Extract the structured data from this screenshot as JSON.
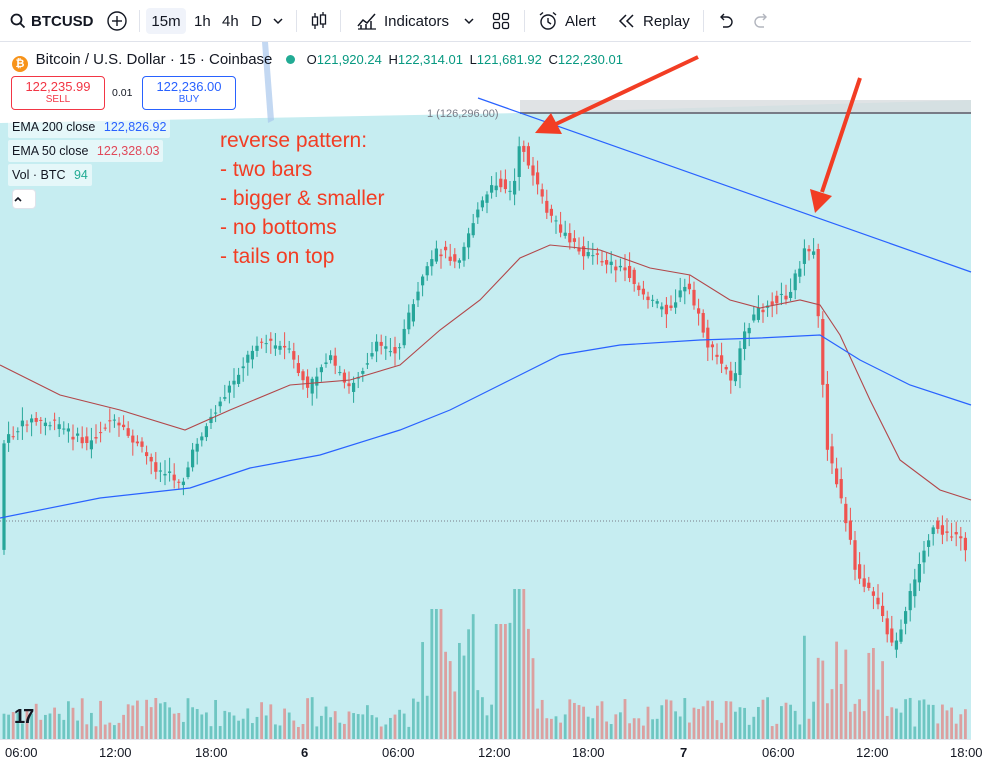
{
  "toolbar": {
    "symbol": "BTCUSD",
    "intervals": [
      "15m",
      "1h",
      "4h",
      "D"
    ],
    "selected_interval": "15m",
    "indicators_label": "Indicators",
    "alert_label": "Alert",
    "replay_label": "Replay"
  },
  "legend": {
    "title": "Bitcoin / U.S. Dollar · 15 · Coinbase",
    "open_label": "O",
    "open": "121,920.24",
    "high_label": "H",
    "high": "122,314.01",
    "low_label": "L",
    "low": "121,681.92",
    "close_label": "C",
    "close": "122,230.01"
  },
  "trade": {
    "sell_price": "122,235.99",
    "sell_label": "SELL",
    "spread": "0.01",
    "buy_price": "122,236.00",
    "buy_label": "BUY"
  },
  "indicators": [
    {
      "name": "EMA 200 close",
      "value": "122,826.92"
    },
    {
      "name": "EMA 50 close",
      "value": "122,328.03"
    },
    {
      "name": "Vol · BTC",
      "value": "94"
    }
  ],
  "annotation": {
    "lines": [
      "reverse pattern:",
      "- two bars",
      "- bigger & smaller",
      "- no bottoms",
      "- tails on top"
    ]
  },
  "high_marker": "1 (126,296.00)",
  "x_ticks": [
    "06:00",
    "12:00",
    "18:00",
    "6",
    "06:00",
    "12:00",
    "18:00",
    "7",
    "06:00",
    "12:00",
    "18:00"
  ],
  "colors": {
    "up": "#26a69a",
    "down": "#ef5350",
    "ema200": "#2962ff",
    "ema50": "#b2474a",
    "fill": "#c6edf1",
    "annotation": "#f23d24"
  },
  "chart_data": {
    "type": "candlestick",
    "series": [
      {
        "name": "EMA 200 close",
        "latest": 122826.92
      },
      {
        "name": "EMA 50 close",
        "latest": 122328.03
      },
      {
        "name": "Vol · BTC",
        "latest": 94
      }
    ],
    "high_marker": 126296.0,
    "x_ticks": [
      "06:00",
      "12:00",
      "18:00",
      "6",
      "06:00",
      "12:00",
      "18:00",
      "7",
      "06:00",
      "12:00",
      "18:00"
    ]
  }
}
